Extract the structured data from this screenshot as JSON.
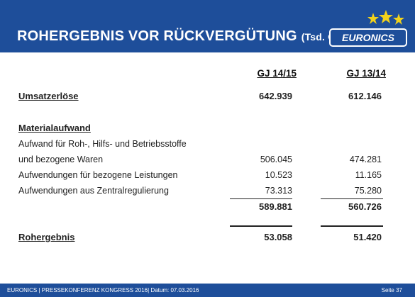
{
  "header": {
    "title": "ROHERGEBNIS VOR RÜCKVERGÜTUNG",
    "unit": "(Tsd. €)",
    "logo_text": "EURONICS"
  },
  "table": {
    "columns": [
      "GJ 14/15",
      "GJ 13/14"
    ],
    "umsatz": {
      "label": "Umsatzerlöse",
      "values": [
        "642.939",
        "612.146"
      ]
    },
    "material_heading": "Materialaufwand",
    "rows": [
      {
        "label": "Aufwand für Roh-, Hilfs- und Betriebsstoffe",
        "values": [
          "",
          ""
        ]
      },
      {
        "label": "und bezogene Waren",
        "values": [
          "506.045",
          "474.281"
        ]
      },
      {
        "label": "Aufwendungen für bezogene Leistungen",
        "values": [
          "10.523",
          "11.165"
        ]
      },
      {
        "label": "Aufwendungen aus Zentralregulierung",
        "values": [
          "73.313",
          "75.280"
        ]
      }
    ],
    "subtotal": [
      "589.881",
      "560.726"
    ],
    "rohergebnis": {
      "label": "Rohergebnis",
      "values": [
        "53.058",
        "51.420"
      ]
    }
  },
  "footer": {
    "left": "EURONICS | PRESSEKONFERENZ KONGRESS 2016| Datum: 07.03.2016",
    "right": "Seite 37"
  },
  "colors": {
    "brand_blue": "#1e4e9a",
    "star_yellow": "#f2d21b"
  }
}
